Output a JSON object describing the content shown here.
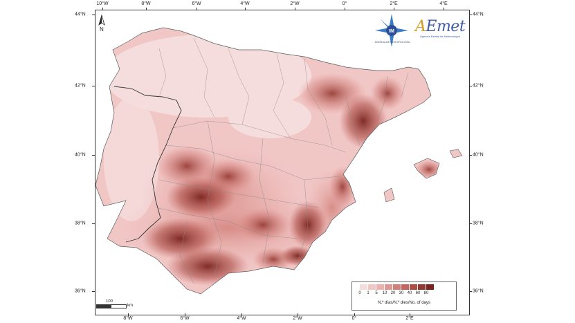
{
  "map": {
    "axes": {
      "top_labels": [
        "10°W",
        "8°W",
        "6°W",
        "4°W",
        "2°W",
        "0°",
        "2°E",
        "4°E"
      ],
      "bottom_labels": [
        "8°W",
        "6°W",
        "4°W",
        "2°W",
        "0°",
        "2°E"
      ],
      "left_labels": [
        "44°N",
        "42°N",
        "40°N",
        "38°N",
        "36°N"
      ],
      "right_labels": [
        "44°N",
        "42°N",
        "40°N",
        "38°N",
        "36°N"
      ]
    },
    "north_arrow_label": "N",
    "scale": {
      "value": "100",
      "unit": "km"
    },
    "logos": {
      "im_text": "AGENCIA DE METEOROLOGÍA",
      "aemet_text": "AEmet",
      "aemet_sub": "Agencia Estatal de Meteorología"
    },
    "legend": {
      "breaks": [
        "0",
        "1",
        "5",
        "10",
        "20",
        "30",
        "40",
        "60",
        "80"
      ],
      "colors": [
        "#f6dddd",
        "#f1c7c6",
        "#eab1af",
        "#df9893",
        "#d27f79",
        "#c2665f",
        "#ad4d46",
        "#963832",
        "#7a241f"
      ],
      "title": "N.º días/N.º dies/No. of days"
    }
  }
}
